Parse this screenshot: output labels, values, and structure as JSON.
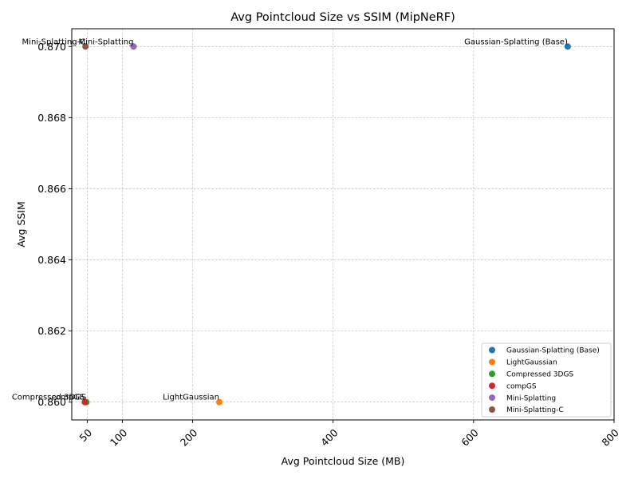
{
  "chart_data": {
    "type": "scatter",
    "title": "Avg Pointcloud Size vs SSIM (MipNeRF)",
    "xlabel": "Avg Pointcloud Size (MB)",
    "ylabel": "Avg SSIM",
    "xlim": [
      28,
      800
    ],
    "ylim": [
      0.8595,
      0.8705
    ],
    "xticks": [
      50,
      100,
      200,
      400,
      600,
      800
    ],
    "yticks": [
      0.86,
      0.862,
      0.864,
      0.866,
      0.868,
      0.87
    ],
    "ytick_labels": [
      "0.860",
      "0.862",
      "0.864",
      "0.866",
      "0.868",
      "0.870"
    ],
    "grid": true,
    "legend_position": "lower right",
    "series": [
      {
        "name": "Gaussian-Splatting (Base)",
        "color": "#1f77b4",
        "x": 734,
        "y": 0.87,
        "label": "Gaussian-Splatting (Base)"
      },
      {
        "name": "LightGaussian",
        "color": "#ff7f0e",
        "x": 238,
        "y": 0.86,
        "label": "LightGaussian"
      },
      {
        "name": "Compressed 3DGS",
        "color": "#2ca02c",
        "x": 48.8,
        "y": 0.86,
        "label": "Compressed 3DGS"
      },
      {
        "name": "compGS",
        "color": "#d62728",
        "x": 46.5,
        "y": 0.86,
        "label": "compGS"
      },
      {
        "name": "Mini-Splatting",
        "color": "#9467bd",
        "x": 116,
        "y": 0.87,
        "label": "Mini-Splatting"
      },
      {
        "name": "Mini-Splatting-C",
        "color": "#8c564b",
        "x": 47.5,
        "y": 0.87,
        "label": "Mini-Splatting-C"
      }
    ]
  }
}
